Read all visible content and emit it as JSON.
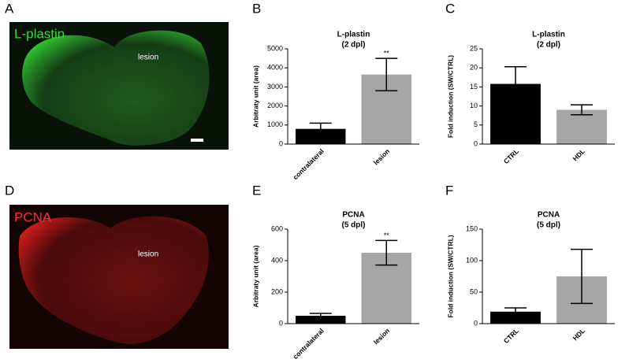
{
  "images": [
    {
      "panel": "A",
      "label": "L-plastin",
      "annotation": "lesion",
      "color": "#2fe02f"
    },
    {
      "panel": "D",
      "label": "PCNA",
      "annotation": "lesion",
      "color": "#ff2a3a"
    }
  ],
  "chart_data": [
    {
      "type": "bar",
      "panel": "B",
      "title": "L-plastin",
      "subtitle": "(2 dpl)",
      "y_label": "Arbitraty unit (area)",
      "categories": [
        "contralateral",
        "lesion"
      ],
      "values": [
        800,
        3650
      ],
      "errors": [
        300,
        850
      ],
      "significance": [
        null,
        "**"
      ],
      "colors": [
        "#000000",
        "#a6a6a6"
      ],
      "ylim": [
        0,
        5000
      ],
      "yticks": [
        0,
        1000,
        2000,
        3000,
        4000,
        5000
      ]
    },
    {
      "type": "bar",
      "panel": "C",
      "title": "L-plastin",
      "subtitle": "(2 dpl)",
      "y_label": "Fold induction (SW/CTRL)",
      "categories": [
        "CTRL",
        "HDL"
      ],
      "values": [
        15.8,
        9
      ],
      "errors": [
        4.5,
        1.3
      ],
      "colors": [
        "#000000",
        "#a6a6a6"
      ],
      "ylim": [
        0,
        25
      ],
      "yticks": [
        0,
        5,
        10,
        15,
        20,
        25
      ]
    },
    {
      "type": "bar",
      "panel": "E",
      "title": "PCNA",
      "subtitle": "(5 dpl)",
      "y_label": "Arbitraty unit (area)",
      "categories": [
        "contralateral",
        "lesion"
      ],
      "values": [
        50,
        450
      ],
      "errors": [
        15,
        78
      ],
      "significance": [
        null,
        "**"
      ],
      "colors": [
        "#000000",
        "#a6a6a6"
      ],
      "ylim": [
        0,
        600
      ],
      "yticks": [
        0,
        200,
        400,
        600
      ]
    },
    {
      "type": "bar",
      "panel": "F",
      "title": "PCNA",
      "subtitle": "(5 dpl)",
      "y_label": "Fold induction (SW/CTRL)",
      "categories": [
        "CTRL",
        "HDL"
      ],
      "values": [
        19,
        75
      ],
      "errors": [
        6,
        43
      ],
      "colors": [
        "#000000",
        "#a6a6a6"
      ],
      "ylim": [
        0,
        150
      ],
      "yticks": [
        0,
        50,
        100,
        150
      ]
    }
  ]
}
